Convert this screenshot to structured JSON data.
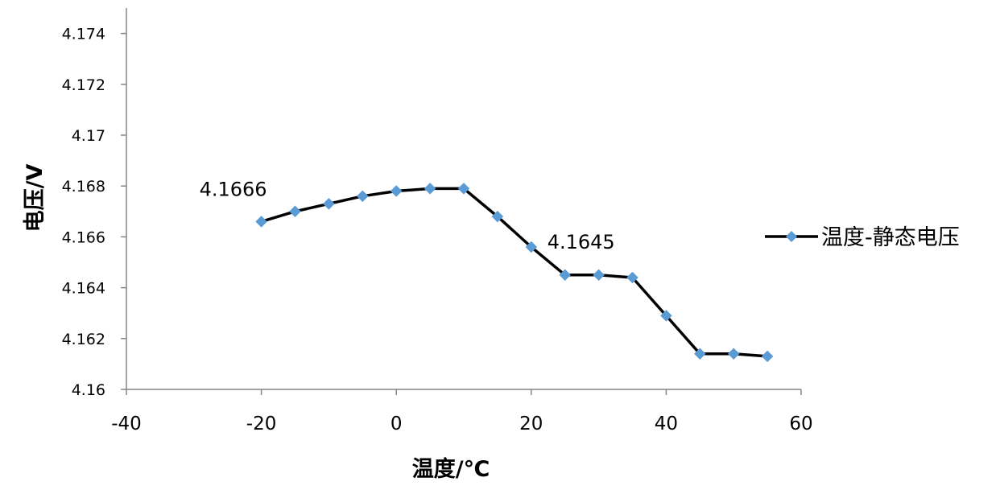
{
  "chart_data": {
    "type": "line",
    "title": "",
    "xlabel": "温度/℃",
    "ylabel": "电压/V",
    "xlim": [
      -40,
      60
    ],
    "ylim": [
      4.16,
      4.175
    ],
    "x_ticks": [
      -40,
      -20,
      0,
      20,
      40,
      60
    ],
    "y_ticks": [
      4.16,
      4.162,
      4.164,
      4.166,
      4.168,
      4.17,
      4.172,
      4.174
    ],
    "x_tick_labels": [
      "-40",
      "-20",
      "0",
      "20",
      "40",
      "60"
    ],
    "y_tick_labels": [
      "4.16",
      "4.162",
      "4.164",
      "4.166",
      "4.168",
      "4.17",
      "4.172",
      "4.174"
    ],
    "grid": false,
    "legend_position": "right",
    "series": [
      {
        "name": "温度-静态电压",
        "line_color": "#000000",
        "marker_color": "#5b9bd5",
        "marker": "diamond",
        "x": [
          -20,
          -15,
          -10,
          -5,
          0,
          5,
          10,
          15,
          20,
          25,
          30,
          35,
          40,
          45,
          50,
          55
        ],
        "y": [
          4.1666,
          4.167,
          4.1673,
          4.1676,
          4.1678,
          4.1679,
          4.1679,
          4.1668,
          4.1656,
          4.1645,
          4.1645,
          4.1644,
          4.1629,
          4.1614,
          4.1614,
          4.1613
        ]
      }
    ],
    "annotations": [
      {
        "text": "4.1666",
        "x": -20,
        "y": 4.1666
      },
      {
        "text": "4.1645",
        "x": 25,
        "y": 4.1645
      }
    ]
  }
}
